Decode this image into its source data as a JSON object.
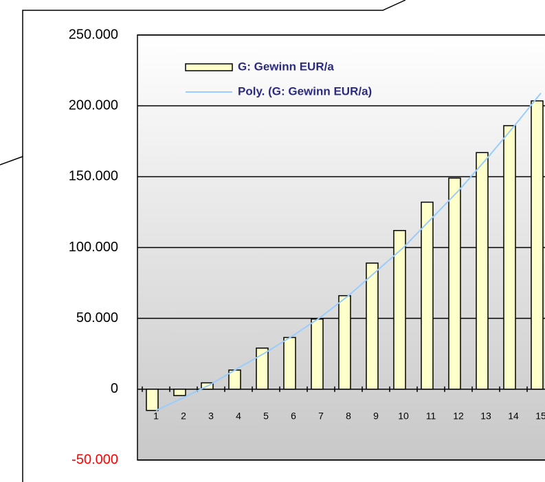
{
  "chart_data": {
    "type": "bar",
    "categories": [
      "1",
      "2",
      "3",
      "4",
      "5",
      "6",
      "7",
      "8",
      "9",
      "10",
      "11",
      "12",
      "13",
      "14",
      "15"
    ],
    "series": [
      {
        "name": "G: Gewinn EUR/a",
        "color": "#ffffcc",
        "values": [
          -15000,
          -4500,
          4500,
          13500,
          29000,
          36500,
          49500,
          66000,
          89000,
          112000,
          132000,
          149000,
          167000,
          186000,
          203500
        ]
      },
      {
        "name": "Poly. (G: Gewinn EUR/a)",
        "type": "line",
        "color": "#99ccff",
        "values": [
          -15000,
          -6000,
          3500,
          15000,
          26000,
          38000,
          51000,
          66000,
          83000,
          100000,
          120000,
          140000,
          162000,
          185000,
          209000
        ]
      }
    ],
    "ylim": [
      -50000,
      250000
    ],
    "yticks": [
      {
        "value": -50000,
        "label": "-50.000"
      },
      0,
      {
        "value": 50000,
        "label": "50.000"
      },
      {
        "value": 100000,
        "label": "100.000"
      },
      {
        "value": 150000,
        "label": "150.000"
      },
      {
        "value": 200000,
        "label": "200.000"
      },
      {
        "value": 250000,
        "label": "250.000"
      }
    ],
    "grid": true
  }
}
